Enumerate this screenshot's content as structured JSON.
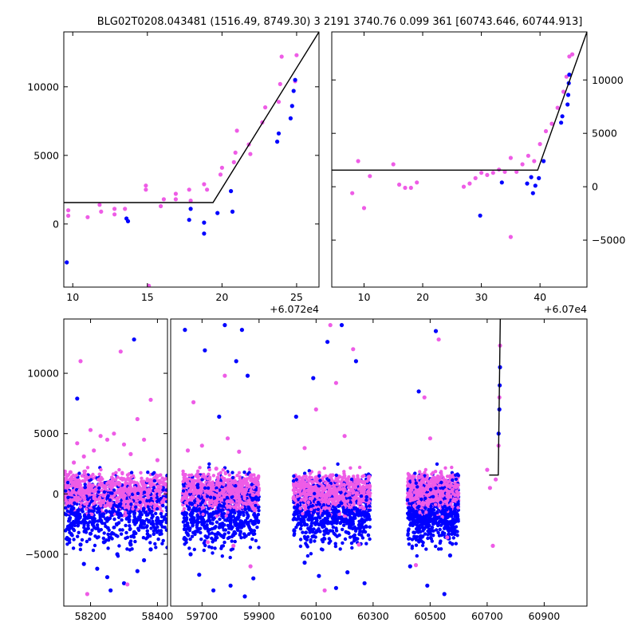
{
  "figure": {
    "title": "BLG02T0208.043481 (1516.49, 8749.30)   3 2191 3740.76 0.099 361 [60743.646, 60744.913]",
    "colors": {
      "series_a": "#0000ff",
      "series_b": "#ee5ce6",
      "model": "#000000"
    }
  },
  "chart_data": [
    {
      "type": "scatter",
      "panel": "zoom-left",
      "title": "",
      "xlabel": "",
      "ylabel": "",
      "x_offset_label": "+6.072e4",
      "xlim": [
        60729.4,
        60746.5
      ],
      "ylim": [
        -4600,
        14000
      ],
      "x_ticks": [
        {
          "v": 60730,
          "label": "10"
        },
        {
          "v": 60735,
          "label": "15"
        },
        {
          "v": 60740,
          "label": "20"
        },
        {
          "v": 60745,
          "label": "25"
        }
      ],
      "y_ticks": [
        {
          "v": 0,
          "label": "0"
        },
        {
          "v": 5000,
          "label": "5000"
        },
        {
          "v": 10000,
          "label": "10000"
        }
      ],
      "y_tick_side": "left",
      "model": [
        [
          60729.4,
          1560
        ],
        [
          60739.4,
          1560
        ],
        [
          60746.5,
          14000
        ]
      ],
      "series": [
        {
          "color": "#ee5ce6",
          "points": [
            [
              60729.7,
              1000
            ],
            [
              60729.7,
              600
            ],
            [
              60731,
              500
            ],
            [
              60731.8,
              1400
            ],
            [
              60731.9,
              900
            ],
            [
              60732.8,
              1100
            ],
            [
              60732.8,
              700
            ],
            [
              60733.5,
              1100
            ],
            [
              60734.9,
              2800
            ],
            [
              60734.9,
              2500
            ],
            [
              60735.1,
              -4500
            ],
            [
              60735.9,
              1300
            ],
            [
              60736.1,
              1800
            ],
            [
              60736.9,
              2200
            ],
            [
              60736.9,
              1800
            ],
            [
              60737.8,
              2500
            ],
            [
              60737.9,
              1700
            ],
            [
              60738.8,
              2900
            ],
            [
              60739,
              2500
            ],
            [
              60739.9,
              3600
            ],
            [
              60740,
              4100
            ],
            [
              60740.8,
              4500
            ],
            [
              60740.9,
              5200
            ],
            [
              60741,
              6800
            ],
            [
              60741.8,
              5800
            ],
            [
              60741.9,
              5100
            ],
            [
              60742.7,
              7400
            ],
            [
              60742.9,
              8500
            ],
            [
              60743.8,
              8900
            ],
            [
              60743.9,
              10200
            ],
            [
              60744,
              12200
            ],
            [
              60744.9,
              10400
            ],
            [
              60745,
              12300
            ]
          ]
        },
        {
          "color": "#0000ff",
          "points": [
            [
              60729.6,
              -2800
            ],
            [
              60733.6,
              400
            ],
            [
              60733.7,
              200
            ],
            [
              60737.8,
              300
            ],
            [
              60737.9,
              1100
            ],
            [
              60738.8,
              -700
            ],
            [
              60738.8,
              100
            ],
            [
              60739.7,
              800
            ],
            [
              60740.6,
              2400
            ],
            [
              60740.7,
              900
            ],
            [
              60743.7,
              6000
            ],
            [
              60743.8,
              6600
            ],
            [
              60744.6,
              7700
            ],
            [
              60744.7,
              8600
            ],
            [
              60744.8,
              9700
            ],
            [
              60744.9,
              10500
            ]
          ]
        }
      ]
    },
    {
      "type": "scatter",
      "panel": "zoom-right",
      "title": "",
      "xlabel": "",
      "ylabel": "",
      "x_offset_label": "+6.07e4",
      "xlim": [
        60704.5,
        60748
      ],
      "ylim": [
        -9400,
        14500
      ],
      "x_ticks": [
        {
          "v": 60710,
          "label": "10"
        },
        {
          "v": 60720,
          "label": "20"
        },
        {
          "v": 60730,
          "label": "30"
        },
        {
          "v": 60740,
          "label": "40"
        }
      ],
      "y_ticks": [
        {
          "v": -5000,
          "label": "−5000"
        },
        {
          "v": 0,
          "label": "0"
        },
        {
          "v": 5000,
          "label": "5000"
        },
        {
          "v": 10000,
          "label": "10000"
        }
      ],
      "y_tick_side": "right",
      "model": [
        [
          60704.5,
          1560
        ],
        [
          60739.6,
          1560
        ],
        [
          60748,
          14500
        ]
      ],
      "series": [
        {
          "color": "#ee5ce6",
          "points": [
            [
              60708,
              -600
            ],
            [
              60709,
              2400
            ],
            [
              60710,
              -2000
            ],
            [
              60711,
              1000
            ],
            [
              60715,
              2100
            ],
            [
              60716,
              200
            ],
            [
              60717,
              -100
            ],
            [
              60718,
              -100
            ],
            [
              60719,
              400
            ],
            [
              60727,
              0
            ],
            [
              60728,
              300
            ],
            [
              60729,
              800
            ],
            [
              60730,
              1300
            ],
            [
              60731,
              1100
            ],
            [
              60732,
              1300
            ],
            [
              60733,
              1600
            ],
            [
              60734,
              1400
            ],
            [
              60735,
              2700
            ],
            [
              60735,
              -4700
            ],
            [
              60736,
              1400
            ],
            [
              60737,
              2100
            ],
            [
              60738,
              2900
            ],
            [
              60739,
              2400
            ],
            [
              60740,
              4000
            ],
            [
              60741,
              5200
            ],
            [
              60742,
              5900
            ],
            [
              60743,
              7400
            ],
            [
              60744,
              8900
            ],
            [
              60744.5,
              10300
            ],
            [
              60745,
              12200
            ],
            [
              60745.5,
              12400
            ]
          ]
        },
        {
          "color": "#0000ff",
          "points": [
            [
              60729.8,
              -2700
            ],
            [
              60733.5,
              400
            ],
            [
              60737.8,
              300
            ],
            [
              60738.5,
              900
            ],
            [
              60738.8,
              -600
            ],
            [
              60739.2,
              100
            ],
            [
              60739.8,
              800
            ],
            [
              60740.6,
              2400
            ],
            [
              60743.6,
              6000
            ],
            [
              60743.8,
              6600
            ],
            [
              60744.7,
              7700
            ],
            [
              60744.8,
              8600
            ],
            [
              60744.9,
              9700
            ],
            [
              60745,
              10500
            ]
          ]
        }
      ]
    },
    {
      "type": "scatter",
      "panel": "full-left",
      "title": "",
      "xlabel": "",
      "ylabel": "",
      "xlim": [
        58120,
        58430
      ],
      "ylim": [
        -9300,
        14500
      ],
      "x_ticks": [
        {
          "v": 58200,
          "label": "58200"
        },
        {
          "v": 58400,
          "label": "58400"
        }
      ],
      "y_ticks": [
        {
          "v": -5000,
          "label": "−5000"
        },
        {
          "v": 0,
          "label": "0"
        },
        {
          "v": 5000,
          "label": "5000"
        },
        {
          "v": 10000,
          "label": "10000"
        }
      ],
      "y_tick_side": "left",
      "model": [],
      "series": [
        {
          "color": "#0000ff",
          "points": [
            [
              58140,
              -1500
            ],
            [
              58150,
              -2500
            ],
            [
              58160,
              7900
            ],
            [
              58170,
              -4200
            ],
            [
              58180,
              -5800
            ],
            [
              58200,
              -3300
            ],
            [
              58220,
              -6200
            ],
            [
              58240,
              -4000
            ],
            [
              58250,
              -6900
            ],
            [
              58260,
              -8000
            ],
            [
              58280,
              -5000
            ],
            [
              58300,
              -7400
            ],
            [
              58320,
              -4200
            ],
            [
              58330,
              12800
            ],
            [
              58340,
              -6400
            ],
            [
              58360,
              -5500
            ],
            [
              58380,
              -4600
            ],
            [
              58400,
              -2000
            ]
          ]
        },
        {
          "color": "#ee5ce6",
          "points": [
            [
              58140,
              1800
            ],
            [
              58150,
              2600
            ],
            [
              58160,
              4200
            ],
            [
              58170,
              11000
            ],
            [
              58180,
              3100
            ],
            [
              58190,
              -8300
            ],
            [
              58200,
              5300
            ],
            [
              58210,
              3600
            ],
            [
              58230,
              4800
            ],
            [
              58250,
              4500
            ],
            [
              58270,
              5000
            ],
            [
              58290,
              11800
            ],
            [
              58300,
              4100
            ],
            [
              58310,
              -7500
            ],
            [
              58320,
              3300
            ],
            [
              58340,
              6200
            ],
            [
              58360,
              4500
            ],
            [
              58380,
              7800
            ],
            [
              58400,
              2800
            ]
          ]
        }
      ]
    },
    {
      "type": "scatter",
      "panel": "full-right",
      "title": "",
      "xlabel": "",
      "ylabel": "",
      "xlim": [
        59590,
        61050
      ],
      "ylim": [
        -9300,
        14500
      ],
      "x_ticks": [
        {
          "v": 59700,
          "label": "59700"
        },
        {
          "v": 59900,
          "label": "59900"
        },
        {
          "v": 60100,
          "label": "60100"
        },
        {
          "v": 60300,
          "label": "60300"
        },
        {
          "v": 60500,
          "label": "60500"
        },
        {
          "v": 60700,
          "label": "60700"
        },
        {
          "v": 60900,
          "label": "60900"
        }
      ],
      "y_ticks": [],
      "y_tick_side": "none",
      "model": [
        [
          60707,
          1560
        ],
        [
          60739,
          1560
        ],
        [
          60746,
          14500
        ]
      ],
      "series": [
        {
          "color": "#0000ff",
          "points": [
            [
              59640,
              13600
            ],
            [
              59660,
              -5000
            ],
            [
              59690,
              -6700
            ],
            [
              59710,
              11900
            ],
            [
              59740,
              -8000
            ],
            [
              59760,
              6400
            ],
            [
              59780,
              14000
            ],
            [
              59800,
              -7600
            ],
            [
              59820,
              11000
            ],
            [
              59840,
              13600
            ],
            [
              59850,
              -8500
            ],
            [
              59860,
              9800
            ],
            [
              59880,
              -7000
            ],
            [
              60030,
              6400
            ],
            [
              60060,
              -5700
            ],
            [
              60090,
              9600
            ],
            [
              60110,
              -6800
            ],
            [
              60140,
              12600
            ],
            [
              60170,
              -7800
            ],
            [
              60190,
              14000
            ],
            [
              60210,
              -6500
            ],
            [
              60240,
              11000
            ],
            [
              60270,
              -7400
            ],
            [
              60430,
              -6000
            ],
            [
              60460,
              8500
            ],
            [
              60490,
              -7600
            ],
            [
              60520,
              13500
            ],
            [
              60550,
              -8300
            ],
            [
              60570,
              -5100
            ],
            [
              60740,
              5000
            ],
            [
              60743,
              7000
            ],
            [
              60744,
              9000
            ],
            [
              60745,
              10500
            ]
          ]
        },
        {
          "color": "#ee5ce6",
          "points": [
            [
              59650,
              3600
            ],
            [
              59670,
              7600
            ],
            [
              59700,
              4000
            ],
            [
              59720,
              -4000
            ],
            [
              59750,
              2100
            ],
            [
              59780,
              9800
            ],
            [
              59790,
              4600
            ],
            [
              59810,
              -4300
            ],
            [
              59830,
              3500
            ],
            [
              59870,
              -6000
            ],
            [
              60060,
              3800
            ],
            [
              60100,
              7000
            ],
            [
              60130,
              -8000
            ],
            [
              60150,
              14000
            ],
            [
              60170,
              9200
            ],
            [
              60200,
              4800
            ],
            [
              60230,
              12000
            ],
            [
              60250,
              -4200
            ],
            [
              60450,
              -5900
            ],
            [
              60480,
              8000
            ],
            [
              60500,
              4600
            ],
            [
              60530,
              12800
            ],
            [
              60560,
              -3600
            ],
            [
              60700,
              2000
            ],
            [
              60710,
              500
            ],
            [
              60720,
              -4300
            ],
            [
              60730,
              1200
            ],
            [
              60740,
              4000
            ],
            [
              60743,
              8000
            ],
            [
              60745,
              12300
            ]
          ]
        }
      ]
    }
  ]
}
